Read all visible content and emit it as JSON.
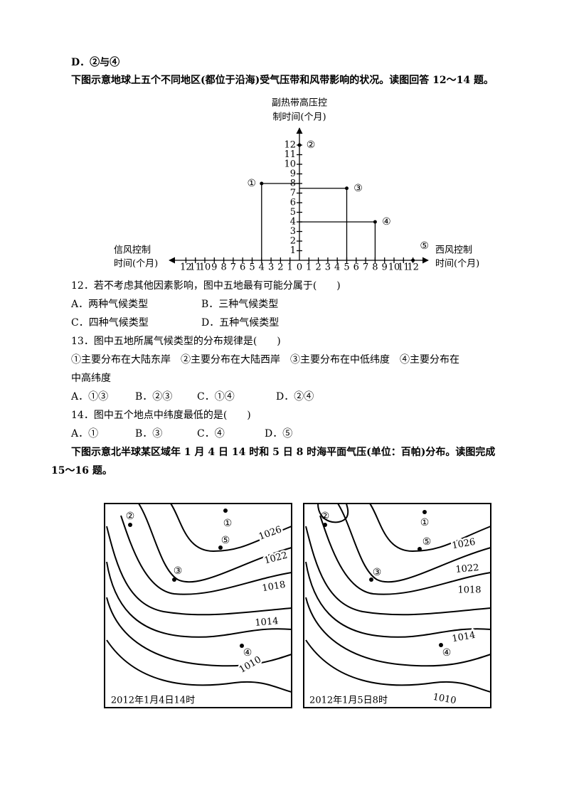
{
  "prev_option": "D．②与④",
  "intro1": "下图示意地球上五个不同地区(都位于沿海)受气压带和风带影响的状况。读图回答 12～14 题。",
  "figure1": {
    "y_title": [
      "副热带高压控",
      "制时间(个月)"
    ],
    "left_title": [
      "信风控制",
      "时间(个月)"
    ],
    "right_title": [
      "西风控制",
      "时间(个月)"
    ],
    "y_ticks": [
      1,
      2,
      3,
      4,
      5,
      6,
      7,
      8,
      9,
      10,
      11,
      12
    ],
    "left_ticks": [
      1,
      2,
      3,
      4,
      5,
      6,
      7,
      8,
      9,
      10,
      11,
      12
    ],
    "right_ticks": [
      1,
      2,
      3,
      4,
      5,
      6,
      7,
      8,
      9,
      10,
      11,
      12
    ],
    "origin_label": 0,
    "points": [
      {
        "label": "①",
        "wind": "信风",
        "wind_months": 4,
        "high_months": 8
      },
      {
        "label": "②",
        "wind": "西风",
        "wind_months": 0,
        "high_months": 12
      },
      {
        "label": "③",
        "wind": "西风",
        "wind_months": 5,
        "high_months": 7.5
      },
      {
        "label": "④",
        "wind": "西风",
        "wind_months": 8,
        "high_months": 4
      },
      {
        "label": "⑤",
        "wind": "西风",
        "wind_months": 12,
        "high_months": 0
      }
    ]
  },
  "q12": {
    "stem": "12．若不考虑其他因素影响，图中五地最有可能分属于(　　)",
    "options": [
      "A．两种气候类型",
      "B．三种气候类型",
      "C．四种气候类型",
      "D．五种气候类型"
    ]
  },
  "q13": {
    "stem": "13．图中五地所属气候类型的分布规律是(　　)",
    "statements": [
      "①主要分布在大陆东岸　②主要分布在大陆西岸　③主要分布在中低纬度　④主要分布在",
      "中高纬度"
    ],
    "options": [
      "A．①③",
      "B．②③",
      "C．①④",
      "D．②④"
    ]
  },
  "q14": {
    "stem": "14．图中五个地点中纬度最低的是(　　)",
    "options": [
      "A．①",
      "B．③",
      "C．④",
      "D．⑤"
    ]
  },
  "intro2": [
    "下图示意北半球某区域年 1 月 4 日 14 时和 5 日 8 时海平面气压(单位：百帕)分布。读图完成",
    "15～16 题。"
  ],
  "maps": [
    {
      "caption": "2012年1月4日14时",
      "points": [
        "①",
        "②",
        "③",
        "④",
        "⑤"
      ],
      "isobars": [
        1026,
        1022,
        1018,
        1014,
        1010
      ]
    },
    {
      "caption": "2012年1月5日8时",
      "points": [
        "①",
        "②",
        "③",
        "④",
        "⑤"
      ],
      "isobars": [
        1026,
        1022,
        1018,
        1014,
        1010
      ]
    }
  ]
}
